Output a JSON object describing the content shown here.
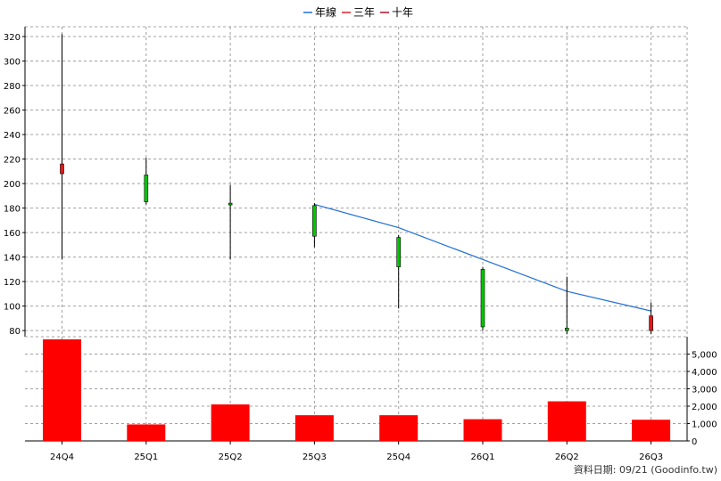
{
  "chart_data": {
    "type": "candlestick",
    "legend": [
      {
        "label": "年線",
        "color": "#1f6fd6"
      },
      {
        "label": "三年",
        "color": "#e0202a"
      },
      {
        "label": "十年",
        "color": "#b0102a"
      }
    ],
    "categories": [
      "24Q4",
      "25Q1",
      "25Q2",
      "25Q3",
      "25Q4",
      "26Q1",
      "26Q2",
      "26Q3"
    ],
    "price_axis": {
      "ylim": [
        75,
        328
      ],
      "ticks": [
        80,
        100,
        120,
        140,
        160,
        180,
        200,
        220,
        240,
        260,
        280,
        300,
        320
      ]
    },
    "candles": [
      {
        "open": 208,
        "high": 322,
        "low": 138,
        "close": 216
      },
      {
        "open": 207,
        "high": 221,
        "low": 183,
        "close": 185
      },
      {
        "open": 184,
        "high": 199,
        "low": 138,
        "close": 183
      },
      {
        "open": 182,
        "high": 184,
        "low": 148,
        "close": 157
      },
      {
        "open": 156,
        "high": 158,
        "low": 98,
        "close": 132
      },
      {
        "open": 130,
        "high": 132,
        "low": 80,
        "close": 83
      },
      {
        "open": 82,
        "high": 124,
        "low": 77,
        "close": 80
      },
      {
        "open": 80,
        "high": 103,
        "low": 77,
        "close": 92
      }
    ],
    "year_line": {
      "name": "年線",
      "color": "#1f6fd6",
      "start_index": 3,
      "values": [
        183,
        164,
        138,
        112,
        96
      ]
    },
    "volume_axis": {
      "ylim": [
        0,
        6000
      ],
      "ticks": [
        0,
        1000,
        2000,
        3000,
        4000,
        5000
      ],
      "tick_labels": [
        "0",
        "1,000",
        "2,000",
        "3,000",
        "4,000",
        "5,000"
      ]
    },
    "volume": [
      5850,
      950,
      2100,
      1480,
      1480,
      1250,
      2280,
      1220
    ],
    "colors": {
      "up": "#00c800",
      "down": "#e01818",
      "volume": "#ff0000",
      "grid": "#a0a0a0"
    }
  },
  "footer": {
    "text": "資料日期: 09/21 (Goodinfo.tw)"
  }
}
